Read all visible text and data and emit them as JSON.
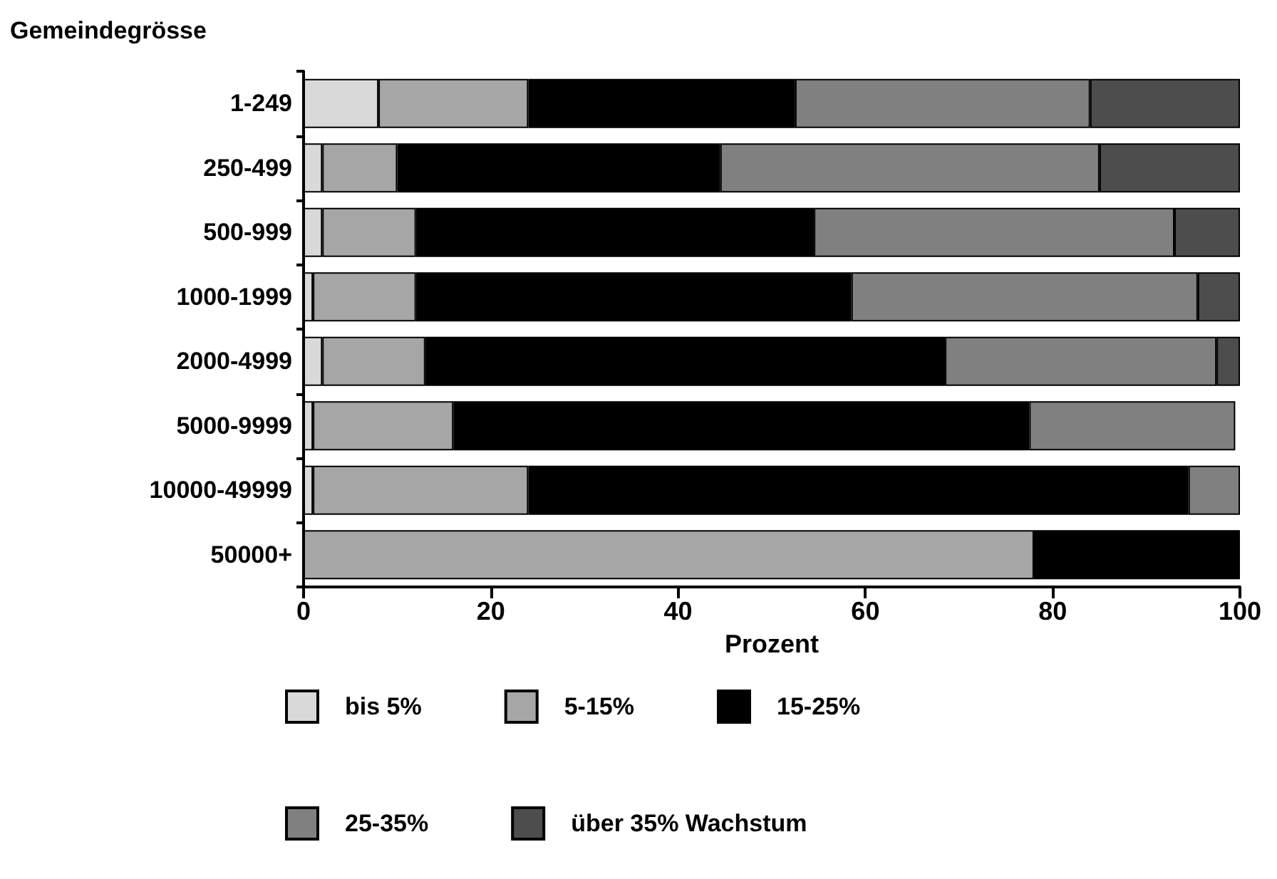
{
  "chart_data": {
    "type": "bar",
    "orientation": "horizontal",
    "stacked": true,
    "ylabel": "Gemeindegrösse",
    "xlabel": "Prozent",
    "categories": [
      "1-249",
      "250-499",
      "500-999",
      "1000-1999",
      "2000-4999",
      "5000-9999",
      "10000-49999",
      "50000+"
    ],
    "series": [
      {
        "name": "bis 5%",
        "color": "#d9d9d9",
        "values": [
          8,
          2,
          2,
          1,
          2,
          1,
          1,
          null
        ]
      },
      {
        "name": "5-15%",
        "color": "#a6a6a6",
        "values": [
          16,
          8,
          10,
          11,
          11,
          15,
          23,
          78
        ]
      },
      {
        "name": "15-25%",
        "color": "#000000",
        "values": [
          28.5,
          34.5,
          42.5,
          46.5,
          55.5,
          61.5,
          70.5,
          22
        ]
      },
      {
        "name": "25-35%",
        "color": "#808080",
        "values": [
          31.5,
          40.5,
          38.5,
          37,
          29,
          22,
          5.5,
          null
        ]
      },
      {
        "name": "über 35% Wachstum",
        "color": "#4d4d4d",
        "values": [
          16,
          15,
          7,
          4.5,
          2.5,
          null,
          null,
          null
        ]
      }
    ],
    "xlim": [
      0,
      100
    ],
    "xticks": [
      0,
      20,
      40,
      60,
      80,
      100
    ],
    "grid": false,
    "legend": "bottom"
  }
}
